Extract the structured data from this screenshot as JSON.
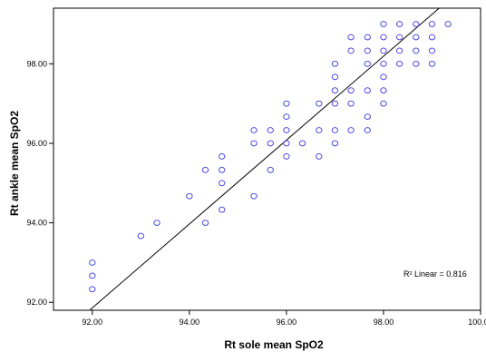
{
  "chart_data": {
    "type": "scatter",
    "title": "",
    "xlabel": "Rt sole mean SpO2",
    "ylabel": "Rt ankle mean SpO2",
    "xlim": [
      91.2,
      100.0
    ],
    "ylim": [
      91.8,
      99.4
    ],
    "x_ticks": [
      92.0,
      94.0,
      96.0,
      98.0,
      100.0
    ],
    "x_tick_labels": [
      "92.00",
      "94.00",
      "96.00",
      "98.00",
      "100.00"
    ],
    "y_ticks": [
      92.0,
      94.0,
      96.0,
      98.0
    ],
    "y_tick_labels": [
      "92.00",
      "94.00",
      "96.00",
      "98.00"
    ],
    "grid": false,
    "legend": "none",
    "annotation": "R² Linear = 0.816",
    "fit_line": {
      "type": "linear",
      "intercept": -5.2,
      "slope": 1.055
    },
    "colors": {
      "marker": "#4a4adf",
      "fit_line": "#000000",
      "axis": "#000000"
    },
    "points": [
      [
        92.0,
        93.0
      ],
      [
        92.0,
        92.67
      ],
      [
        92.0,
        92.33
      ],
      [
        93.0,
        93.67
      ],
      [
        93.33,
        94.0
      ],
      [
        94.0,
        94.67
      ],
      [
        94.33,
        95.33
      ],
      [
        94.33,
        94.0
      ],
      [
        94.67,
        95.67
      ],
      [
        94.67,
        95.33
      ],
      [
        94.67,
        95.0
      ],
      [
        94.67,
        94.33
      ],
      [
        95.33,
        96.33
      ],
      [
        95.33,
        96.0
      ],
      [
        95.33,
        94.67
      ],
      [
        95.67,
        96.33
      ],
      [
        95.67,
        96.0
      ],
      [
        95.67,
        95.33
      ],
      [
        96.0,
        97.0
      ],
      [
        96.0,
        96.67
      ],
      [
        96.0,
        96.33
      ],
      [
        96.0,
        96.0
      ],
      [
        96.0,
        95.67
      ],
      [
        96.33,
        96.0
      ],
      [
        96.67,
        97.0
      ],
      [
        96.67,
        96.33
      ],
      [
        96.67,
        95.67
      ],
      [
        97.0,
        98.0
      ],
      [
        97.0,
        97.67
      ],
      [
        97.0,
        97.33
      ],
      [
        97.0,
        97.0
      ],
      [
        97.0,
        96.33
      ],
      [
        97.0,
        96.0
      ],
      [
        97.33,
        98.67
      ],
      [
        97.33,
        98.33
      ],
      [
        97.33,
        97.33
      ],
      [
        97.33,
        97.0
      ],
      [
        97.33,
        96.33
      ],
      [
        97.67,
        98.67
      ],
      [
        97.67,
        98.33
      ],
      [
        97.67,
        98.0
      ],
      [
        97.67,
        97.33
      ],
      [
        97.67,
        96.67
      ],
      [
        97.67,
        96.33
      ],
      [
        98.0,
        99.0
      ],
      [
        98.0,
        98.67
      ],
      [
        98.0,
        98.33
      ],
      [
        98.0,
        98.0
      ],
      [
        98.0,
        97.67
      ],
      [
        98.0,
        97.33
      ],
      [
        98.0,
        97.0
      ],
      [
        98.33,
        99.0
      ],
      [
        98.33,
        98.67
      ],
      [
        98.33,
        98.33
      ],
      [
        98.33,
        98.0
      ],
      [
        98.67,
        99.0
      ],
      [
        98.67,
        98.67
      ],
      [
        98.67,
        98.33
      ],
      [
        98.67,
        98.0
      ],
      [
        99.0,
        99.0
      ],
      [
        99.0,
        98.67
      ],
      [
        99.0,
        98.33
      ],
      [
        99.0,
        98.0
      ],
      [
        99.33,
        99.0
      ]
    ]
  }
}
